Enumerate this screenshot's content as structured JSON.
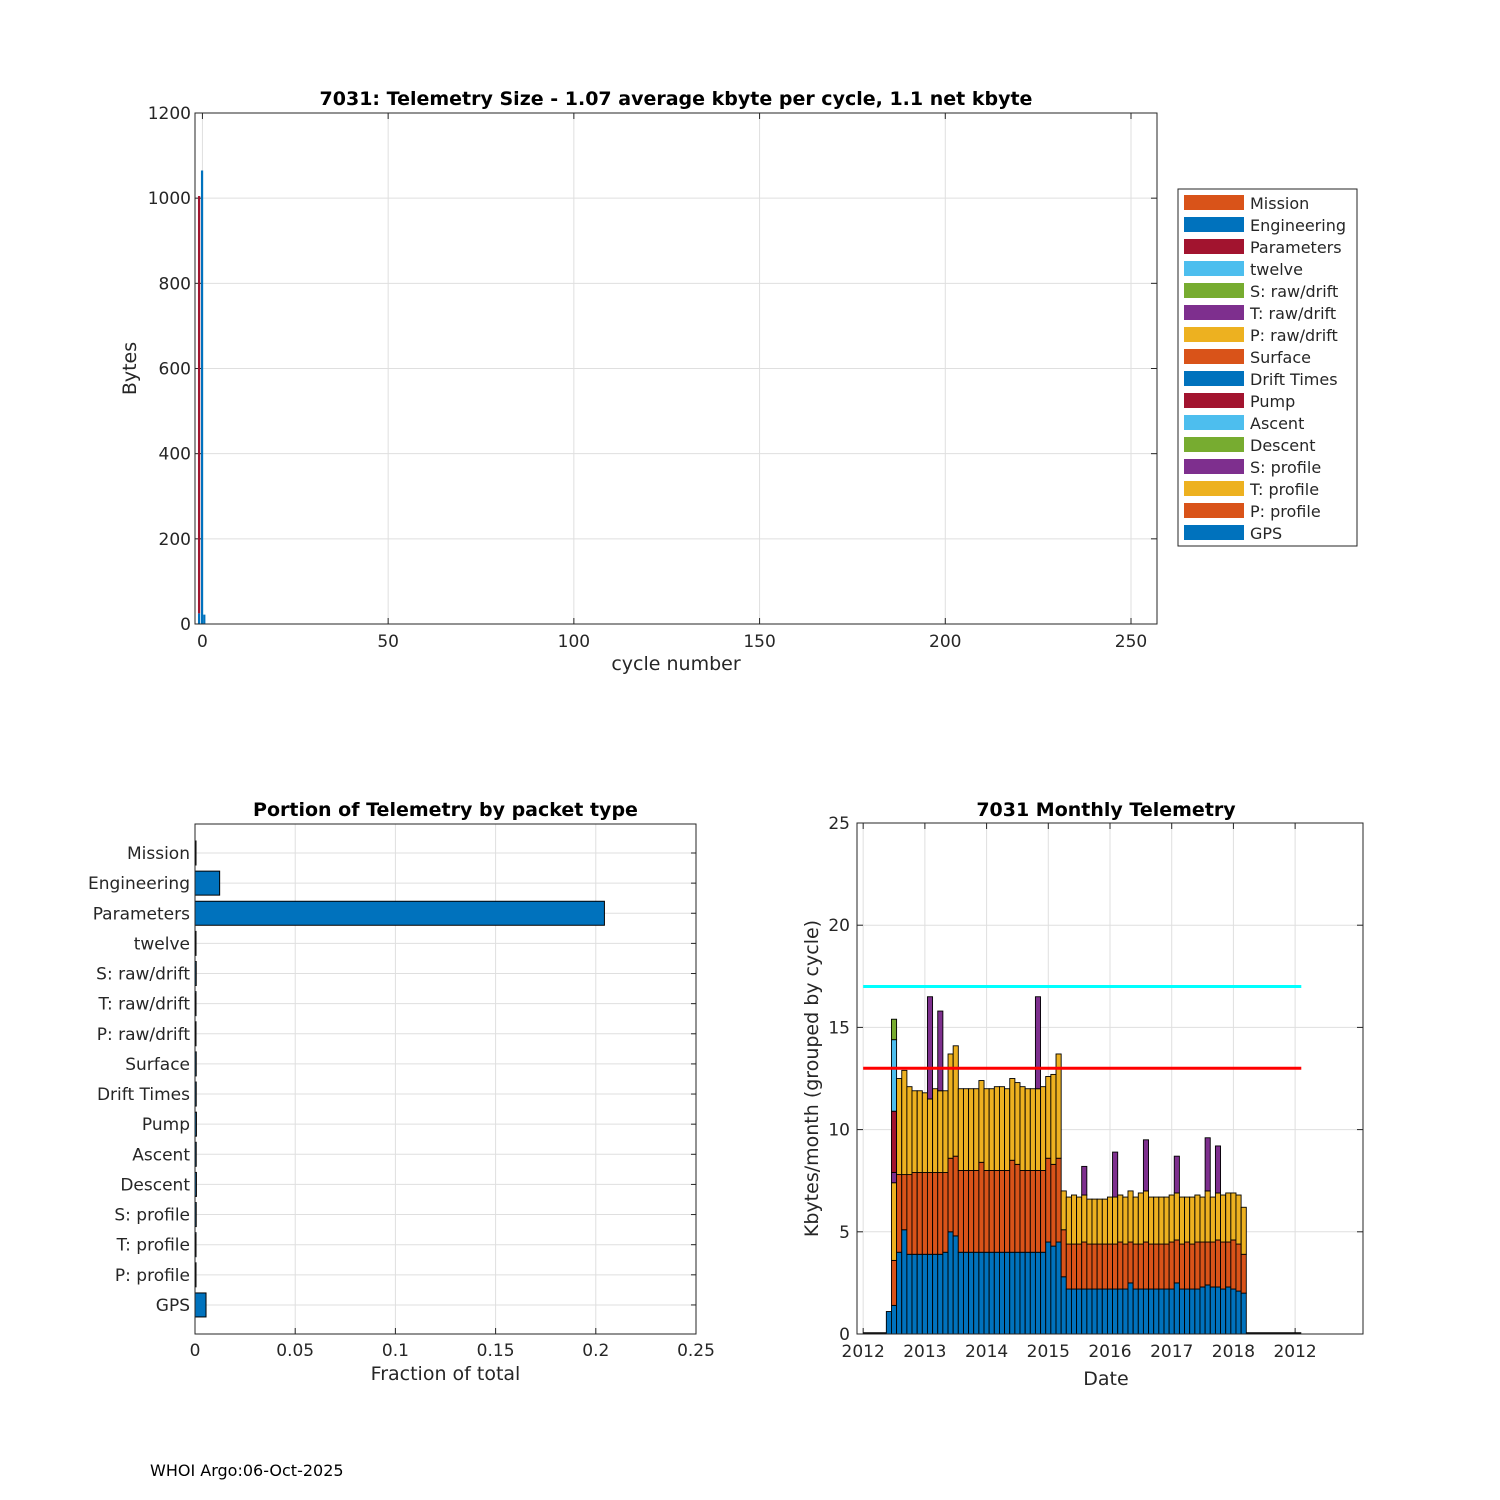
{
  "footer": "WHOI Argo:06-Oct-2025",
  "colors": {
    "mission": "#D95319",
    "engineering": "#0072BD",
    "parameters": "#A2142F",
    "twelve": "#4DBEEE",
    "s_raw": "#77AC30",
    "t_raw": "#7E2F8E",
    "p_raw": "#EDB120",
    "cyan_line": "#00FFFF",
    "red_line": "#FF0000",
    "grid": "#DFDFDF"
  },
  "chart_data": [
    {
      "id": "telemetry-size",
      "type": "bar",
      "title": "7031: Telemetry Size - 1.07 average kbyte per cycle,     1.1 net kbyte",
      "xlabel": "cycle number",
      "ylabel": "Bytes",
      "xlim": [
        -2,
        257
      ],
      "ylim": [
        0,
        1200
      ],
      "xticks": [
        0,
        50,
        100,
        150,
        200,
        250
      ],
      "yticks": [
        0,
        200,
        400,
        600,
        800,
        1000,
        1200
      ],
      "grid": true,
      "legend_position": "outside-right",
      "legend": [
        "Mission",
        "Engineering",
        "Parameters",
        "twelve",
        "S: raw/drift",
        "T: raw/drift",
        "P: raw/drift",
        "Surface",
        "Drift Times",
        "Pump",
        "Ascent",
        "Descent",
        "S: profile",
        "T: profile",
        "P: profile",
        "GPS"
      ],
      "legend_colors": [
        "#D95319",
        "#0072BD",
        "#A2142F",
        "#4DBEEE",
        "#77AC30",
        "#7E2F8E",
        "#EDB120",
        "#D95319",
        "#0072BD",
        "#A2142F",
        "#4DBEEE",
        "#77AC30",
        "#7E2F8E",
        "#EDB120",
        "#D95319",
        "#0072BD"
      ],
      "bars": [
        {
          "x": -0.9,
          "width": 0.6,
          "segments": [
            {
              "name": "GPS",
              "value": 25,
              "color": "#0072BD"
            },
            {
              "name": "Parameters",
              "value": 980,
              "color": "#A2142F"
            }
          ]
        },
        {
          "x": -0.1,
          "width": 0.6,
          "segments": [
            {
              "name": "Engineering",
              "value": 1065,
              "color": "#0072BD"
            }
          ]
        },
        {
          "x": 0.5,
          "width": 0.6,
          "segments": [
            {
              "name": "GPS",
              "value": 22,
              "color": "#0072BD"
            }
          ]
        }
      ]
    },
    {
      "id": "portion-by-packet",
      "type": "bar",
      "orientation": "horizontal",
      "title": "Portion of Telemetry by packet type",
      "xlabel": "Fraction of total",
      "ylabel": "",
      "xlim": [
        0,
        0.25
      ],
      "xticks": [
        0,
        0.05,
        0.1,
        0.15,
        0.2,
        0.25
      ],
      "xtick_labels": [
        "0",
        "0.05",
        "0.1",
        "0.15",
        "0.2",
        "0.25"
      ],
      "grid": true,
      "categories": [
        "Mission",
        "Engineering",
        "Parameters",
        "twelve",
        "S: raw/drift",
        "T: raw/drift",
        "P: raw/drift",
        "Surface",
        "Drift Times",
        "Pump",
        "Ascent",
        "Descent",
        "S: profile",
        "T: profile",
        "P: profile",
        "GPS"
      ],
      "values": [
        0.0003,
        0.0123,
        0.2043,
        0.0004,
        0.0006,
        0.0005,
        0.0004,
        0.0006,
        0.0006,
        0.0007,
        0.0006,
        0.0007,
        0.0006,
        0.0005,
        0.0004,
        0.0055
      ],
      "color": "#0072BD"
    },
    {
      "id": "monthly-telemetry",
      "type": "bar",
      "stacked": true,
      "title": "7031 Monthly Telemetry",
      "xlabel": "Date",
      "ylabel": "Kbytes/month (grouped by cycle)",
      "xlim": [
        -0.1,
        8.1
      ],
      "ylim": [
        0,
        25
      ],
      "xticks": [
        0,
        1,
        2,
        3,
        4,
        5,
        6,
        7
      ],
      "xtick_labels": [
        "2012",
        "2013",
        "2014",
        "2015",
        "2016",
        "2017",
        "2018",
        "2012"
      ],
      "yticks": [
        0,
        5,
        10,
        15,
        20,
        25
      ],
      "grid": true,
      "bar_width": 0.0833,
      "hlines": [
        {
          "y": 17,
          "color": "#00FFFF",
          "x_range": [
            0,
            7.1
          ]
        },
        {
          "y": 13,
          "color": "#FF0000",
          "x_range": [
            0,
            7.1
          ]
        }
      ],
      "baseline_range": [
        0,
        7.1
      ],
      "series_order": [
        "engineering",
        "mission",
        "p_raw",
        "t_raw",
        "parameters",
        "twelve",
        "s_raw"
      ],
      "months": [
        {
          "x": 0.417,
          "engineering": 1.1
        },
        {
          "x": 0.5,
          "engineering": 1.4,
          "mission": 2.2,
          "p_raw": 3.8,
          "parameters": 3.0,
          "twelve": 3.5,
          "s_raw": 1.0,
          "t_raw": 0.5
        },
        {
          "x": 0.583,
          "engineering": 4.0,
          "mission": 3.8,
          "p_raw": 4.7
        },
        {
          "x": 0.667,
          "engineering": 5.1,
          "mission": 2.7,
          "p_raw": 5.1
        },
        {
          "x": 0.75,
          "engineering": 3.9,
          "mission": 3.9,
          "p_raw": 4.3
        },
        {
          "x": 0.833,
          "engineering": 3.9,
          "mission": 4.0,
          "p_raw": 4.0
        },
        {
          "x": 0.917,
          "engineering": 3.9,
          "mission": 4.0,
          "p_raw": 4.0
        },
        {
          "x": 1.0,
          "engineering": 3.9,
          "mission": 4.0,
          "p_raw": 3.9
        },
        {
          "x": 1.083,
          "engineering": 3.9,
          "mission": 4.0,
          "p_raw": 3.6,
          "t_raw": 5.0
        },
        {
          "x": 1.167,
          "engineering": 3.9,
          "mission": 4.0,
          "p_raw": 4.1
        },
        {
          "x": 1.25,
          "engineering": 3.9,
          "mission": 4.0,
          "p_raw": 4.0,
          "t_raw": 3.9
        },
        {
          "x": 1.333,
          "engineering": 4.0,
          "mission": 3.9,
          "p_raw": 4.0
        },
        {
          "x": 1.417,
          "engineering": 5.0,
          "mission": 3.6,
          "p_raw": 5.1
        },
        {
          "x": 1.5,
          "engineering": 4.8,
          "mission": 3.9,
          "p_raw": 5.4
        },
        {
          "x": 1.583,
          "engineering": 4.0,
          "mission": 4.0,
          "p_raw": 4.0
        },
        {
          "x": 1.667,
          "engineering": 4.0,
          "mission": 4.0,
          "p_raw": 4.0
        },
        {
          "x": 1.75,
          "engineering": 4.0,
          "mission": 4.0,
          "p_raw": 4.0
        },
        {
          "x": 1.833,
          "engineering": 4.0,
          "mission": 4.0,
          "p_raw": 4.0
        },
        {
          "x": 1.917,
          "engineering": 4.0,
          "mission": 4.4,
          "p_raw": 4.0
        },
        {
          "x": 2.0,
          "engineering": 4.0,
          "mission": 4.0,
          "p_raw": 4.0
        },
        {
          "x": 2.083,
          "engineering": 4.0,
          "mission": 4.0,
          "p_raw": 4.0
        },
        {
          "x": 2.167,
          "engineering": 4.0,
          "mission": 4.0,
          "p_raw": 4.1
        },
        {
          "x": 2.25,
          "engineering": 4.0,
          "mission": 4.0,
          "p_raw": 4.1
        },
        {
          "x": 2.333,
          "engineering": 4.0,
          "mission": 4.0,
          "p_raw": 4.0
        },
        {
          "x": 2.417,
          "engineering": 4.0,
          "mission": 4.5,
          "p_raw": 4.0
        },
        {
          "x": 2.5,
          "engineering": 4.0,
          "mission": 4.3,
          "p_raw": 4.0
        },
        {
          "x": 2.583,
          "engineering": 4.0,
          "mission": 4.0,
          "p_raw": 4.1
        },
        {
          "x": 2.667,
          "engineering": 4.0,
          "mission": 4.0,
          "p_raw": 4.0
        },
        {
          "x": 2.75,
          "engineering": 4.0,
          "mission": 4.0,
          "p_raw": 4.0
        },
        {
          "x": 2.833,
          "engineering": 4.0,
          "mission": 4.0,
          "p_raw": 4.0,
          "t_raw": 4.5
        },
        {
          "x": 2.917,
          "engineering": 4.0,
          "mission": 4.0,
          "p_raw": 4.1
        },
        {
          "x": 3.0,
          "engineering": 4.5,
          "mission": 4.1,
          "p_raw": 4.0
        },
        {
          "x": 3.083,
          "engineering": 4.3,
          "mission": 4.0,
          "p_raw": 4.4
        },
        {
          "x": 3.167,
          "engineering": 4.5,
          "mission": 4.1,
          "p_raw": 5.1
        },
        {
          "x": 3.25,
          "engineering": 2.8,
          "mission": 2.3,
          "p_raw": 1.9
        },
        {
          "x": 3.333,
          "engineering": 2.2,
          "mission": 2.2,
          "p_raw": 2.3
        },
        {
          "x": 3.417,
          "engineering": 2.2,
          "mission": 2.2,
          "p_raw": 2.4
        },
        {
          "x": 3.5,
          "engineering": 2.2,
          "mission": 2.2,
          "p_raw": 2.3
        },
        {
          "x": 3.583,
          "engineering": 2.2,
          "mission": 2.3,
          "p_raw": 2.3,
          "t_raw": 1.4
        },
        {
          "x": 3.667,
          "engineering": 2.2,
          "mission": 2.2,
          "p_raw": 2.2
        },
        {
          "x": 3.75,
          "engineering": 2.2,
          "mission": 2.2,
          "p_raw": 2.2
        },
        {
          "x": 3.833,
          "engineering": 2.2,
          "mission": 2.2,
          "p_raw": 2.2
        },
        {
          "x": 3.917,
          "engineering": 2.2,
          "mission": 2.2,
          "p_raw": 2.2
        },
        {
          "x": 4.0,
          "engineering": 2.2,
          "mission": 2.2,
          "p_raw": 2.3
        },
        {
          "x": 4.083,
          "engineering": 2.2,
          "mission": 2.2,
          "p_raw": 2.3,
          "t_raw": 2.2
        },
        {
          "x": 4.167,
          "engineering": 2.2,
          "mission": 2.3,
          "p_raw": 2.3
        },
        {
          "x": 4.25,
          "engineering": 2.2,
          "mission": 2.2,
          "p_raw": 2.3
        },
        {
          "x": 4.333,
          "engineering": 2.5,
          "mission": 2.0,
          "p_raw": 2.5
        },
        {
          "x": 4.417,
          "engineering": 2.2,
          "mission": 2.2,
          "p_raw": 2.3
        },
        {
          "x": 4.5,
          "engineering": 2.2,
          "mission": 2.2,
          "p_raw": 2.5
        },
        {
          "x": 4.583,
          "engineering": 2.2,
          "mission": 2.3,
          "p_raw": 2.5,
          "t_raw": 2.5
        },
        {
          "x": 4.667,
          "engineering": 2.2,
          "mission": 2.2,
          "p_raw": 2.3
        },
        {
          "x": 4.75,
          "engineering": 2.2,
          "mission": 2.2,
          "p_raw": 2.3
        },
        {
          "x": 4.833,
          "engineering": 2.2,
          "mission": 2.2,
          "p_raw": 2.3
        },
        {
          "x": 4.917,
          "engineering": 2.2,
          "mission": 2.2,
          "p_raw": 2.3
        },
        {
          "x": 5.0,
          "engineering": 2.2,
          "mission": 2.3,
          "p_raw": 2.3
        },
        {
          "x": 5.083,
          "engineering": 2.5,
          "mission": 2.1,
          "p_raw": 2.3,
          "t_raw": 1.8
        },
        {
          "x": 5.167,
          "engineering": 2.2,
          "mission": 2.2,
          "p_raw": 2.3
        },
        {
          "x": 5.25,
          "engineering": 2.2,
          "mission": 2.3,
          "p_raw": 2.2
        },
        {
          "x": 5.333,
          "engineering": 2.2,
          "mission": 2.2,
          "p_raw": 2.3
        },
        {
          "x": 5.417,
          "engineering": 2.2,
          "mission": 2.3,
          "p_raw": 2.3
        },
        {
          "x": 5.5,
          "engineering": 2.3,
          "mission": 2.2,
          "p_raw": 2.2
        },
        {
          "x": 5.583,
          "engineering": 2.4,
          "mission": 2.1,
          "p_raw": 2.5,
          "t_raw": 2.6
        },
        {
          "x": 5.667,
          "engineering": 2.3,
          "mission": 2.2,
          "p_raw": 2.2
        },
        {
          "x": 5.75,
          "engineering": 2.3,
          "mission": 2.3,
          "p_raw": 2.3,
          "t_raw": 2.3
        },
        {
          "x": 5.833,
          "engineering": 2.2,
          "mission": 2.3,
          "p_raw": 2.3
        },
        {
          "x": 5.917,
          "engineering": 2.3,
          "mission": 2.2,
          "p_raw": 2.4
        },
        {
          "x": 6.0,
          "engineering": 2.2,
          "mission": 2.4,
          "p_raw": 2.3
        },
        {
          "x": 6.083,
          "engineering": 2.1,
          "mission": 2.3,
          "p_raw": 2.4
        },
        {
          "x": 6.167,
          "engineering": 2.0,
          "mission": 1.9,
          "p_raw": 2.3
        }
      ]
    }
  ]
}
